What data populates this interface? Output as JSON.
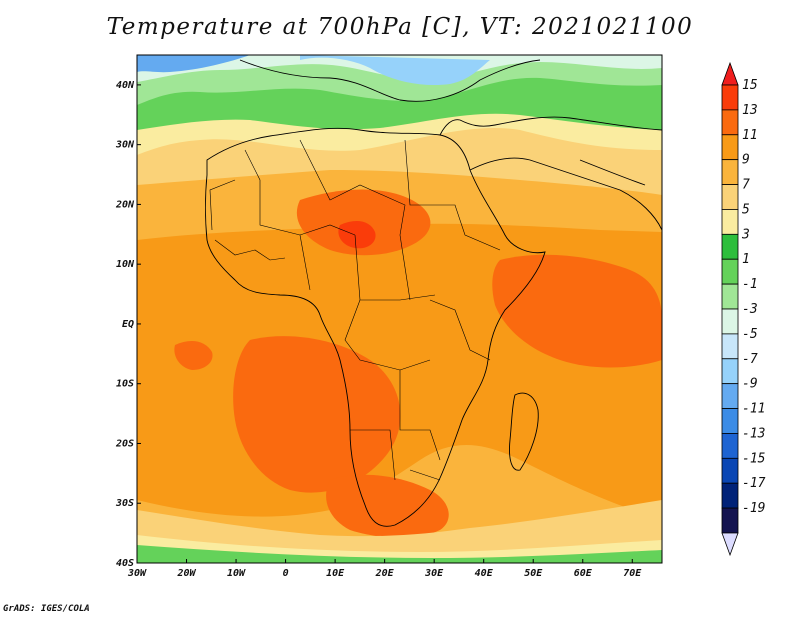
{
  "title": "Temperature at 700hPa [C], VT: 2021021100",
  "credit": "GrADS: IGES/COLA",
  "map": {
    "lon_range": [
      -30,
      76
    ],
    "lat_range": [
      -40,
      45
    ],
    "lon_ticks": [
      {
        "value": -30,
        "label": "30W"
      },
      {
        "value": -20,
        "label": "20W"
      },
      {
        "value": -10,
        "label": "10W"
      },
      {
        "value": 0,
        "label": "0"
      },
      {
        "value": 10,
        "label": "10E"
      },
      {
        "value": 20,
        "label": "20E"
      },
      {
        "value": 30,
        "label": "30E"
      },
      {
        "value": 40,
        "label": "40E"
      },
      {
        "value": 50,
        "label": "50E"
      },
      {
        "value": 60,
        "label": "60E"
      },
      {
        "value": 70,
        "label": "70E"
      }
    ],
    "lat_ticks": [
      {
        "value": 40,
        "label": "40N"
      },
      {
        "value": 30,
        "label": "30N"
      },
      {
        "value": 20,
        "label": "20N"
      },
      {
        "value": 10,
        "label": "10N"
      },
      {
        "value": 0,
        "label": "EQ"
      },
      {
        "value": -10,
        "label": "10S"
      },
      {
        "value": -20,
        "label": "20S"
      },
      {
        "value": -30,
        "label": "30S"
      },
      {
        "value": -40,
        "label": "40S"
      }
    ]
  },
  "colorbar": {
    "levels": [
      "15",
      "13",
      "11",
      "9",
      "7",
      "5",
      "3",
      "1",
      "-1",
      "-3",
      "-5",
      "-7",
      "-9",
      "-11",
      "-13",
      "-15",
      "-17",
      "-19"
    ],
    "colors": [
      "#f01e1e",
      "#fa3c0a",
      "#fa6a0f",
      "#f89a17",
      "#fab43c",
      "#fad278",
      "#faeca0",
      "#2dbe3c",
      "#64d25a",
      "#a0e696",
      "#dcf6e6",
      "#c8e6fa",
      "#96d2fa",
      "#64aaf0",
      "#3c8ce6",
      "#1e64d2",
      "#0a46b4",
      "#002278",
      "#141450",
      "#dcdcff"
    ]
  }
}
